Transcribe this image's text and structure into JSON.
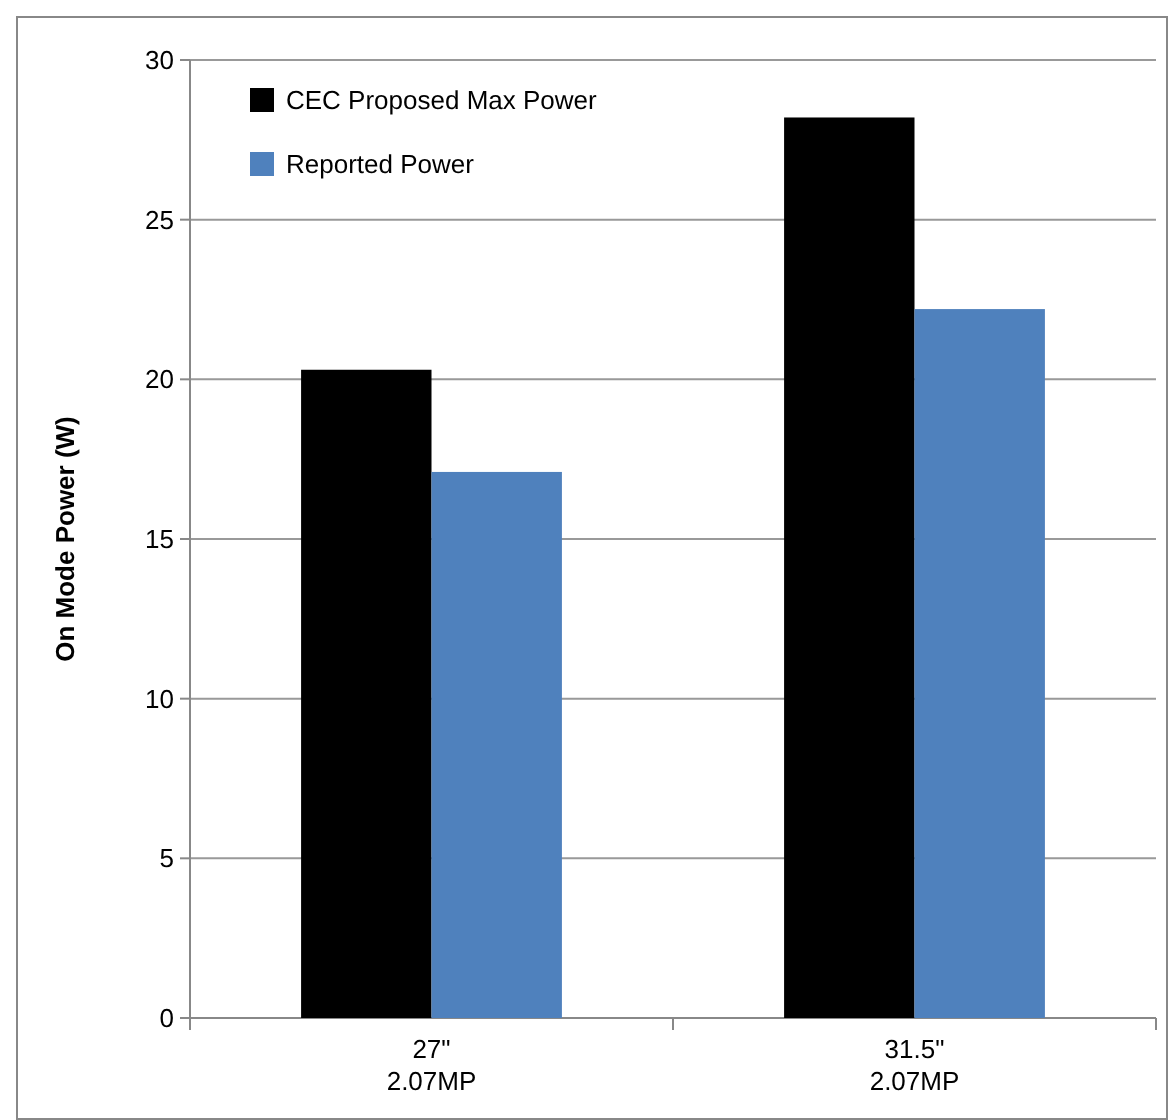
{
  "chart_data": {
    "type": "bar",
    "ylabel": "On Mode Power (W)",
    "categories": [
      "27\"\n2.07MP",
      "31.5\"\n2.07MP"
    ],
    "series": [
      {
        "name": "CEC Proposed Max Power",
        "color": "#000000",
        "values": [
          20.3,
          28.2
        ]
      },
      {
        "name": "Reported Power",
        "color": "#4f81bd",
        "values": [
          17.1,
          22.2
        ]
      }
    ],
    "ylim": [
      0,
      30
    ],
    "yticks": [
      0,
      5,
      10,
      15,
      20,
      25,
      30
    ],
    "grid": "y",
    "legend": "top left"
  }
}
